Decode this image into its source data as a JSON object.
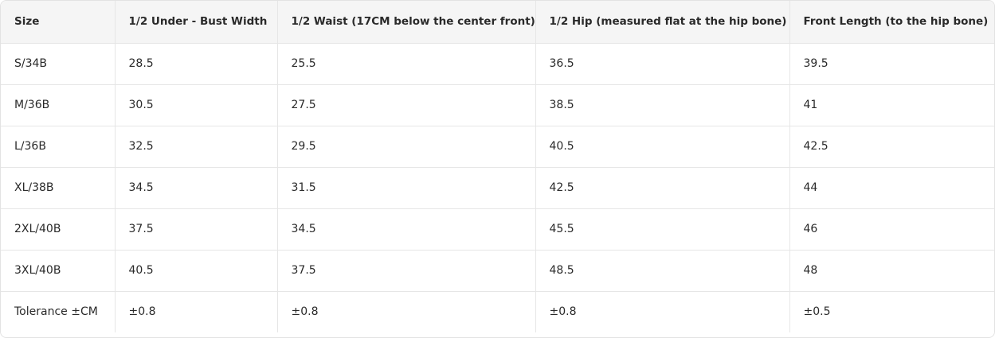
{
  "table": {
    "header": [
      "Size",
      "1/2 Under - Bust Width",
      "1/2 Waist (17CM below the center front)",
      "1/2 Hip (measured flat at the hip bone)",
      "Front Length (to the hip bone)"
    ],
    "rows": [
      [
        "S/34B",
        "28.5",
        "25.5",
        "36.5",
        "39.5"
      ],
      [
        "M/36B",
        "30.5",
        "27.5",
        "38.5",
        "41"
      ],
      [
        "L/36B",
        "32.5",
        "29.5",
        "40.5",
        "42.5"
      ],
      [
        "XL/38B",
        "34.5",
        "31.5",
        "42.5",
        "44"
      ],
      [
        "2XL/40B",
        "37.5",
        "34.5",
        "45.5",
        "46"
      ],
      [
        "3XL/40B",
        "40.5",
        "37.5",
        "48.5",
        "48"
      ],
      [
        "Tolerance ±CM",
        "±0.8",
        "±0.8",
        "±0.8",
        "±0.5"
      ]
    ]
  }
}
